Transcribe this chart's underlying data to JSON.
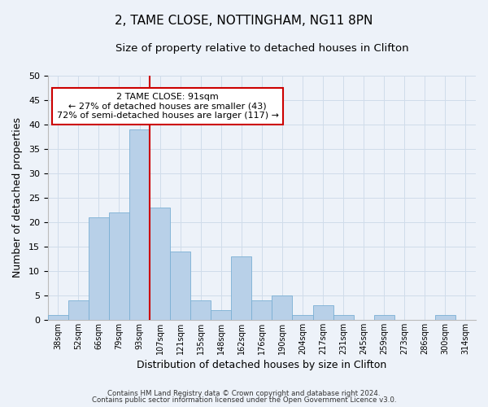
{
  "title": "2, TAME CLOSE, NOTTINGHAM, NG11 8PN",
  "subtitle": "Size of property relative to detached houses in Clifton",
  "xlabel": "Distribution of detached houses by size in Clifton",
  "ylabel": "Number of detached properties",
  "bar_labels": [
    "38sqm",
    "52sqm",
    "66sqm",
    "79sqm",
    "93sqm",
    "107sqm",
    "121sqm",
    "135sqm",
    "148sqm",
    "162sqm",
    "176sqm",
    "190sqm",
    "204sqm",
    "217sqm",
    "231sqm",
    "245sqm",
    "259sqm",
    "273sqm",
    "286sqm",
    "300sqm",
    "314sqm"
  ],
  "bar_values": [
    1,
    4,
    21,
    22,
    39,
    23,
    14,
    4,
    2,
    13,
    4,
    5,
    1,
    3,
    1,
    0,
    1,
    0,
    0,
    1,
    0
  ],
  "bar_color": "#b8d0e8",
  "bar_edge_color": "#7aafd4",
  "vline_color": "#cc0000",
  "vline_bar_index": 4,
  "annotation_line1": "2 TAME CLOSE: 91sqm",
  "annotation_line2": "← 27% of detached houses are smaller (43)",
  "annotation_line3": "72% of semi-detached houses are larger (117) →",
  "annotation_box_color": "#ffffff",
  "annotation_box_edge": "#cc0000",
  "ylim": [
    0,
    50
  ],
  "yticks": [
    0,
    5,
    10,
    15,
    20,
    25,
    30,
    35,
    40,
    45,
    50
  ],
  "grid_color": "#d0dcea",
  "footer1": "Contains HM Land Registry data © Crown copyright and database right 2024.",
  "footer2": "Contains public sector information licensed under the Open Government Licence v3.0.",
  "title_fontsize": 11,
  "subtitle_fontsize": 9.5,
  "bg_color": "#edf2f9"
}
